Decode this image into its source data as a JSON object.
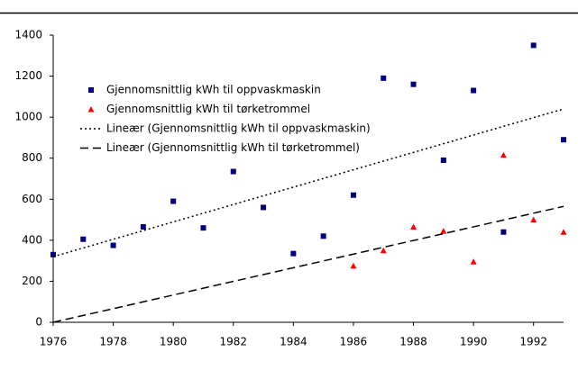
{
  "chart_data": {
    "type": "scatter",
    "xlim": [
      1976,
      1993
    ],
    "xticks": [
      1976,
      1978,
      1980,
      1982,
      1984,
      1986,
      1988,
      1990,
      1992
    ],
    "ylim": [
      0,
      1400
    ],
    "yticks": [
      0,
      200,
      400,
      600,
      800,
      1000,
      1200,
      1400
    ],
    "series": [
      {
        "name": "Gjennomsnittlig kWh til oppvaskmaskin",
        "color": "#000080",
        "marker": "square",
        "x": [
          1976,
          1977,
          1978,
          1979,
          1980,
          1981,
          1982,
          1983,
          1984,
          1985,
          1986,
          1987,
          1988,
          1989,
          1990,
          1991,
          1992,
          1993
        ],
        "values": [
          330,
          405,
          375,
          465,
          590,
          460,
          735,
          560,
          335,
          420,
          620,
          1190,
          1160,
          790,
          1130,
          440,
          1350,
          890
        ]
      },
      {
        "name": "Gjennomsnittlig kWh til tørketrommel",
        "color": "#ff0000",
        "marker": "triangle",
        "x": [
          1986,
          1987,
          1988,
          1989,
          1990,
          1991,
          1992,
          1993
        ],
        "values": [
          275,
          350,
          465,
          445,
          295,
          815,
          500,
          440
        ]
      },
      {
        "name": "Lineær (Gjennomsnittlig kWh til oppvaskmaskin)",
        "color": "#000000",
        "dash": "2,3",
        "x": [
          1976,
          1993
        ],
        "values": [
          320,
          1040
        ]
      },
      {
        "name": "Lineær (Gjennomsnittlig kWh til tørketrommel)",
        "color": "#000000",
        "dash": "9,5",
        "x": [
          1976,
          1993
        ],
        "values": [
          0,
          565
        ]
      }
    ]
  }
}
